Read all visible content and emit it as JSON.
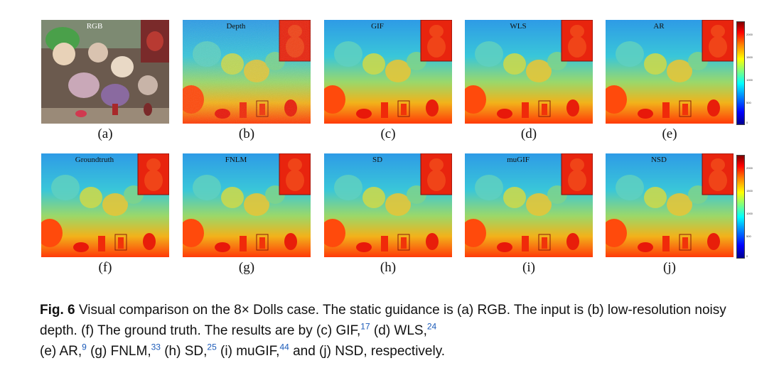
{
  "colors": {
    "depth_far": "#3aa8e8",
    "depth_near": "#ff2a00",
    "inset_red": "#e8240e",
    "link_blue": "#1a5ab8"
  },
  "panels": [
    {
      "id": "a",
      "sub": "(a)",
      "label": "RGB",
      "kind": "rgb"
    },
    {
      "id": "b",
      "sub": "(b)",
      "label": "Depth",
      "kind": "depth",
      "noisy": true
    },
    {
      "id": "c",
      "sub": "(c)",
      "label": "GIF",
      "kind": "depth",
      "noisy": false
    },
    {
      "id": "d",
      "sub": "(d)",
      "label": "WLS",
      "kind": "depth",
      "noisy": false
    },
    {
      "id": "e",
      "sub": "(e)",
      "label": "AR",
      "kind": "depth",
      "noisy": false,
      "colorbar": true
    },
    {
      "id": "f",
      "sub": "(f)",
      "label": "Groundtruth",
      "kind": "depth",
      "noisy": false
    },
    {
      "id": "g",
      "sub": "(g)",
      "label": "FNLM",
      "kind": "depth",
      "noisy": false
    },
    {
      "id": "h",
      "sub": "(h)",
      "label": "SD",
      "kind": "depth",
      "noisy": false
    },
    {
      "id": "i",
      "sub": "(i)",
      "label": "muGIF",
      "kind": "depth",
      "noisy": false
    },
    {
      "id": "j",
      "sub": "(j)",
      "label": "NSD",
      "kind": "depth",
      "noisy": false,
      "colorbar": true
    }
  ],
  "colorbar_ticks": [
    "2000",
    "1500",
    "1000",
    "500",
    "0"
  ],
  "caption": {
    "fig_label": "Fig. 6",
    "t1": " Visual comparison on the 8× Dolls case. The static guidance is (a) RGB. The input is (b) low-resolution noisy depth. (f) The ground truth. The results are by (c) GIF,",
    "r1": "17",
    "t2": " (d) WLS,",
    "r2": "24",
    "t3": " (e) AR,",
    "r3": "9",
    "t4": " (g) FNLM,",
    "r4": "33",
    "t5": " (h) SD,",
    "r5": "25",
    "t6": " (i) muGIF,",
    "r6": "44",
    "t7": " and (j) NSD, respectively."
  }
}
